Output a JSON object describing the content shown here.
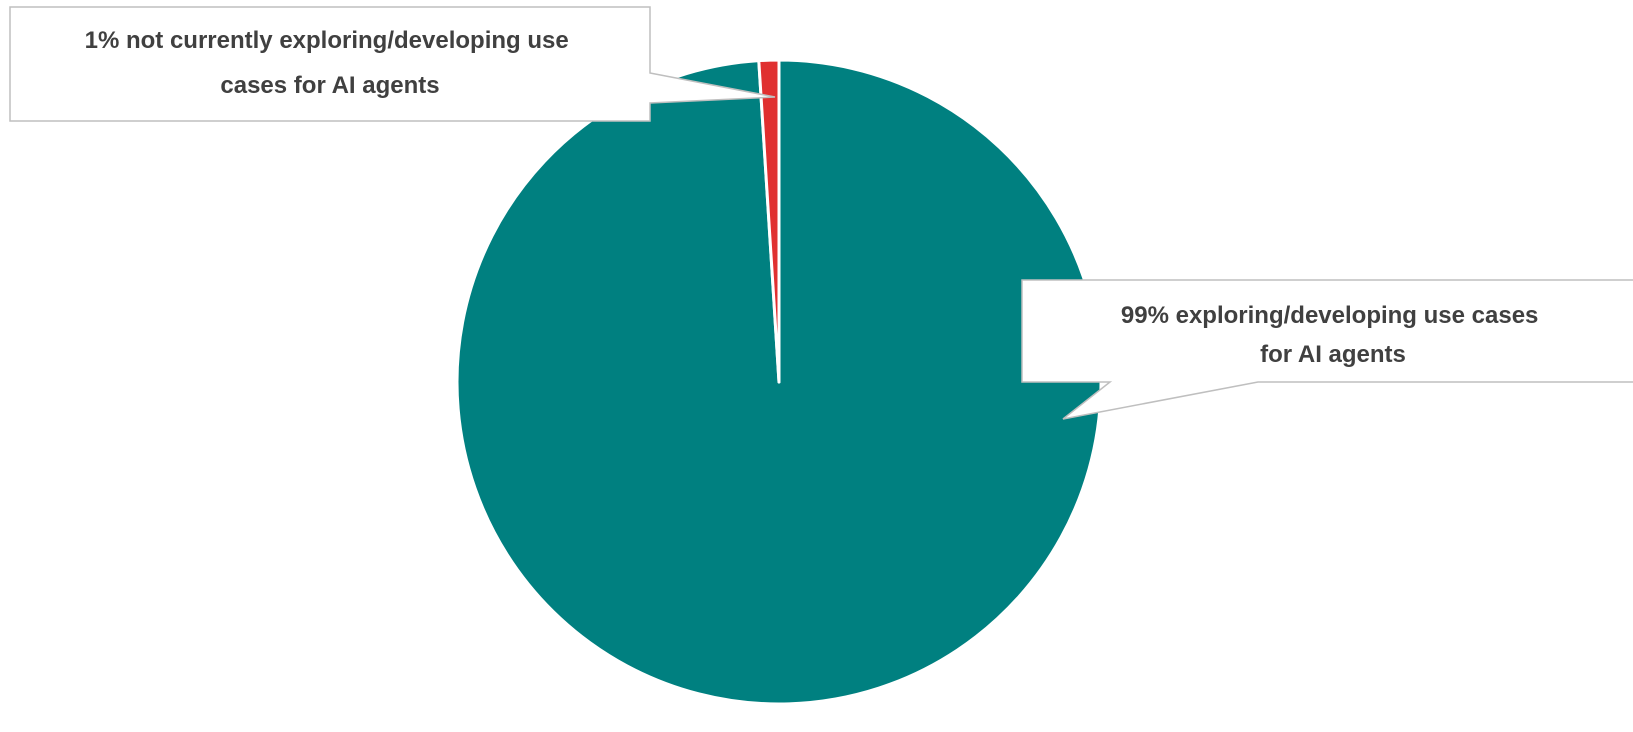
{
  "chart_data": {
    "type": "pie",
    "title": "",
    "start_angle_deg": 0,
    "direction": "clockwise",
    "slices": [
      {
        "value": 99,
        "color": "#008080",
        "label_lines": [
          "99% exploring/developing use cases",
          "for AI agents"
        ]
      },
      {
        "value": 1,
        "color": "#e03030",
        "label_lines": [
          "1% not currently exploring/developing use",
          "cases for AI agents"
        ]
      }
    ],
    "slice_border_color": "#ffffff",
    "callout_border_color": "#bfbfbf",
    "callout_fill": "#ffffff",
    "legend": "none"
  }
}
